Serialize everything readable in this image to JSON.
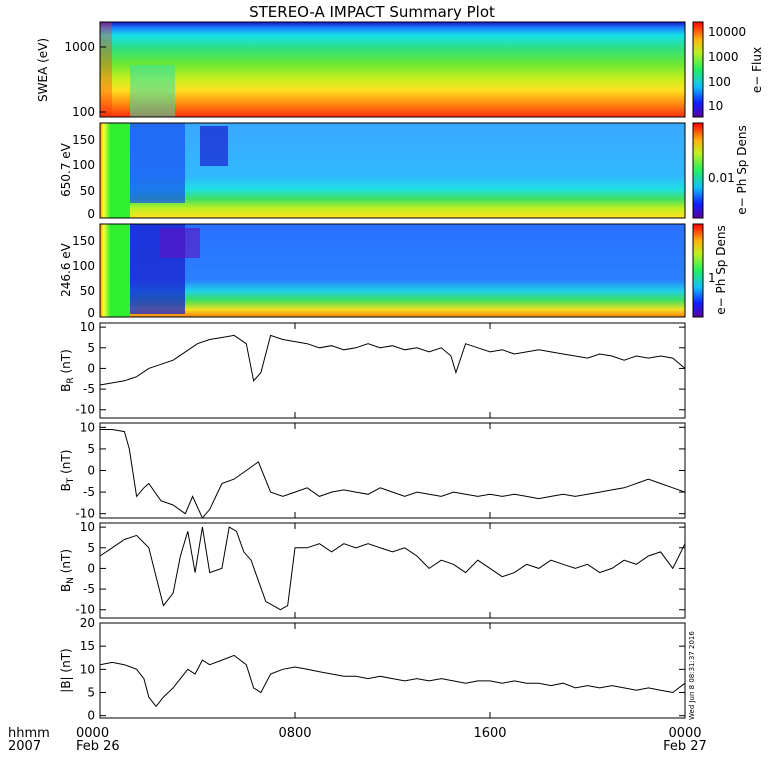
{
  "title": "STEREO-A IMPACT Summary Plot",
  "footer": {
    "time_label": "hhmm",
    "year_label": "2007",
    "date_start": "Feb 26",
    "date_end": "Feb 27",
    "stamp": "Wed Jun  8 08:31:37 2016"
  },
  "chart_data": [
    {
      "type": "heatmap",
      "ylabel": "SWEA (eV)",
      "yscale": "log",
      "ylim": [
        90,
        2000
      ],
      "yticks": [
        "100",
        "1000"
      ],
      "xticks": [
        "0000",
        "0800",
        "1600",
        "0000"
      ],
      "colorbar_label": "e− Flux",
      "colorbar_ticks": [
        "10000",
        "1000",
        "100",
        "10"
      ]
    },
    {
      "type": "heatmap",
      "ylabel": "650.7 eV",
      "ylim": [
        -5,
        180
      ],
      "yticks": [
        "0",
        "50",
        "100",
        "150"
      ],
      "xticks": [
        "0000",
        "0800",
        "1600",
        "0000"
      ],
      "colorbar_label": "e− Ph Sp Dens",
      "colorbar_ticks": [
        "0.01"
      ]
    },
    {
      "type": "heatmap",
      "ylabel": "246.6 eV",
      "ylim": [
        -5,
        180
      ],
      "yticks": [
        "0",
        "50",
        "100",
        "150"
      ],
      "xticks": [
        "0000",
        "0800",
        "1600",
        "0000"
      ],
      "colorbar_label": "e− Ph Sp Dens",
      "colorbar_ticks": [
        "1"
      ]
    },
    {
      "type": "line",
      "ylabel_main": "B",
      "ylabel_sub": "R",
      "ylabel_unit": " (nT)",
      "ylim": [
        -12,
        11
      ],
      "yticks": [
        "10",
        "5",
        "0",
        "-5",
        "-10"
      ],
      "xticks": [
        "0000",
        "0800",
        "1600",
        "0000"
      ],
      "x_hours": [
        0,
        0.5,
        1,
        1.5,
        2,
        2.5,
        3,
        3.5,
        4,
        4.5,
        5,
        5.5,
        6,
        6.3,
        6.6,
        7,
        7.5,
        8,
        8.5,
        9,
        9.5,
        10,
        10.5,
        11,
        11.5,
        12,
        12.5,
        13,
        13.5,
        14,
        14.4,
        14.6,
        15,
        15.5,
        16,
        16.5,
        17,
        17.5,
        18,
        18.5,
        19,
        19.5,
        20,
        20.5,
        21,
        21.5,
        22,
        22.5,
        23,
        23.5,
        24
      ],
      "y": [
        -4,
        -3.5,
        -3,
        -2,
        0,
        1,
        2,
        4,
        6,
        7,
        7.5,
        8,
        6,
        -3,
        -1,
        8,
        7,
        6.5,
        6,
        5,
        5.5,
        4.5,
        5,
        6,
        5,
        5.5,
        4.5,
        5,
        4,
        5,
        3,
        -1,
        6,
        5,
        4,
        4.5,
        3.5,
        4,
        4.5,
        4,
        3.5,
        3,
        2.5,
        3.5,
        3,
        2,
        3,
        2.5,
        3,
        2.5,
        0
      ]
    },
    {
      "type": "line",
      "ylabel_main": "B",
      "ylabel_sub": "T",
      "ylabel_unit": " (nT)",
      "ylim": [
        -11,
        11
      ],
      "yticks": [
        "10",
        "5",
        "0",
        "-5",
        "-10"
      ],
      "xticks": [
        "0000",
        "0800",
        "1600",
        "0000"
      ],
      "x_hours": [
        0,
        0.5,
        1,
        1.2,
        1.5,
        1.8,
        2,
        2.5,
        3,
        3.5,
        3.8,
        4.2,
        4.5,
        5,
        5.5,
        6,
        6.5,
        7,
        7.5,
        8,
        8.5,
        9,
        9.5,
        10,
        10.5,
        11,
        11.5,
        12,
        12.5,
        13,
        13.5,
        14,
        14.5,
        15,
        15.5,
        16,
        16.5,
        17,
        17.5,
        18,
        18.5,
        19,
        19.5,
        20,
        20.5,
        21,
        21.5,
        22,
        22.5,
        23,
        23.5,
        24
      ],
      "y": [
        9.5,
        9.5,
        9,
        5,
        -6,
        -4,
        -3,
        -7,
        -8,
        -10,
        -6,
        -11,
        -9,
        -3,
        -2,
        0,
        2,
        -5,
        -6,
        -5,
        -4,
        -6,
        -5,
        -4.5,
        -5,
        -5.5,
        -4,
        -5,
        -6,
        -5,
        -5.5,
        -6,
        -5,
        -5.5,
        -6,
        -5.5,
        -6,
        -5.5,
        -6,
        -6.5,
        -6,
        -5.5,
        -6,
        -5.5,
        -5,
        -4.5,
        -4,
        -3,
        -2,
        -3,
        -4,
        -5
      ]
    },
    {
      "type": "line",
      "ylabel_main": "B",
      "ylabel_sub": "N",
      "ylabel_unit": " (nT)",
      "ylim": [
        -12,
        11
      ],
      "yticks": [
        "10",
        "5",
        "0",
        "-5",
        "-10"
      ],
      "xticks": [
        "0000",
        "0800",
        "1600",
        "0000"
      ],
      "x_hours": [
        0,
        0.5,
        1,
        1.5,
        2,
        2.3,
        2.6,
        3,
        3.3,
        3.6,
        3.9,
        4.2,
        4.5,
        5,
        5.3,
        5.6,
        5.9,
        6.2,
        6.5,
        6.8,
        7.1,
        7.4,
        7.7,
        8,
        8.5,
        9,
        9.5,
        10,
        10.5,
        11,
        11.5,
        12,
        12.5,
        13,
        13.5,
        14,
        14.5,
        15,
        15.5,
        16,
        16.5,
        17,
        17.5,
        18,
        18.5,
        19,
        19.5,
        20,
        20.5,
        21,
        21.5,
        22,
        22.5,
        23,
        23.5,
        24
      ],
      "y": [
        3,
        5,
        7,
        8,
        5,
        -2,
        -9,
        -6,
        3,
        9,
        -1,
        10,
        -1,
        0,
        10,
        9,
        4,
        2,
        -3,
        -8,
        -9,
        -10,
        -9,
        5,
        5,
        6,
        4,
        6,
        5,
        6,
        5,
        4,
        5,
        3,
        0,
        2,
        1,
        -1,
        2,
        0,
        -2,
        -1,
        1,
        0,
        2,
        1,
        0,
        1,
        -1,
        0,
        2,
        1,
        3,
        4,
        0,
        6
      ]
    },
    {
      "type": "line",
      "ylabel_main": "|B|",
      "ylabel_sub": "",
      "ylabel_unit": " (nT)",
      "ylim": [
        -0.5,
        20
      ],
      "yticks": [
        "20",
        "15",
        "10",
        "5",
        "0"
      ],
      "xticks": [
        "0000",
        "0800",
        "1600",
        "0000"
      ],
      "x_hours": [
        0,
        0.5,
        1,
        1.5,
        1.8,
        2,
        2.3,
        2.6,
        3,
        3.3,
        3.6,
        3.9,
        4.2,
        4.5,
        5,
        5.5,
        6,
        6.3,
        6.6,
        7,
        7.5,
        8,
        8.5,
        9,
        9.5,
        10,
        10.5,
        11,
        11.5,
        12,
        12.5,
        13,
        13.5,
        14,
        14.5,
        15,
        15.5,
        16,
        16.5,
        17,
        17.5,
        18,
        18.5,
        19,
        19.5,
        20,
        20.5,
        21,
        21.5,
        22,
        22.5,
        23,
        23.5,
        24
      ],
      "y": [
        11,
        11.5,
        11,
        10,
        8,
        4,
        2,
        4,
        6,
        8,
        10,
        9,
        12,
        11,
        12,
        13,
        11,
        6,
        5,
        9,
        10,
        10.5,
        10,
        9.5,
        9,
        8.5,
        8.5,
        8,
        8.5,
        8,
        7.5,
        8,
        7.5,
        8,
        7.5,
        7,
        7.5,
        7.5,
        7,
        7.5,
        7,
        7,
        6.5,
        7,
        6,
        6.5,
        6,
        6.5,
        6,
        5.5,
        6,
        5.5,
        5,
        7
      ]
    }
  ]
}
